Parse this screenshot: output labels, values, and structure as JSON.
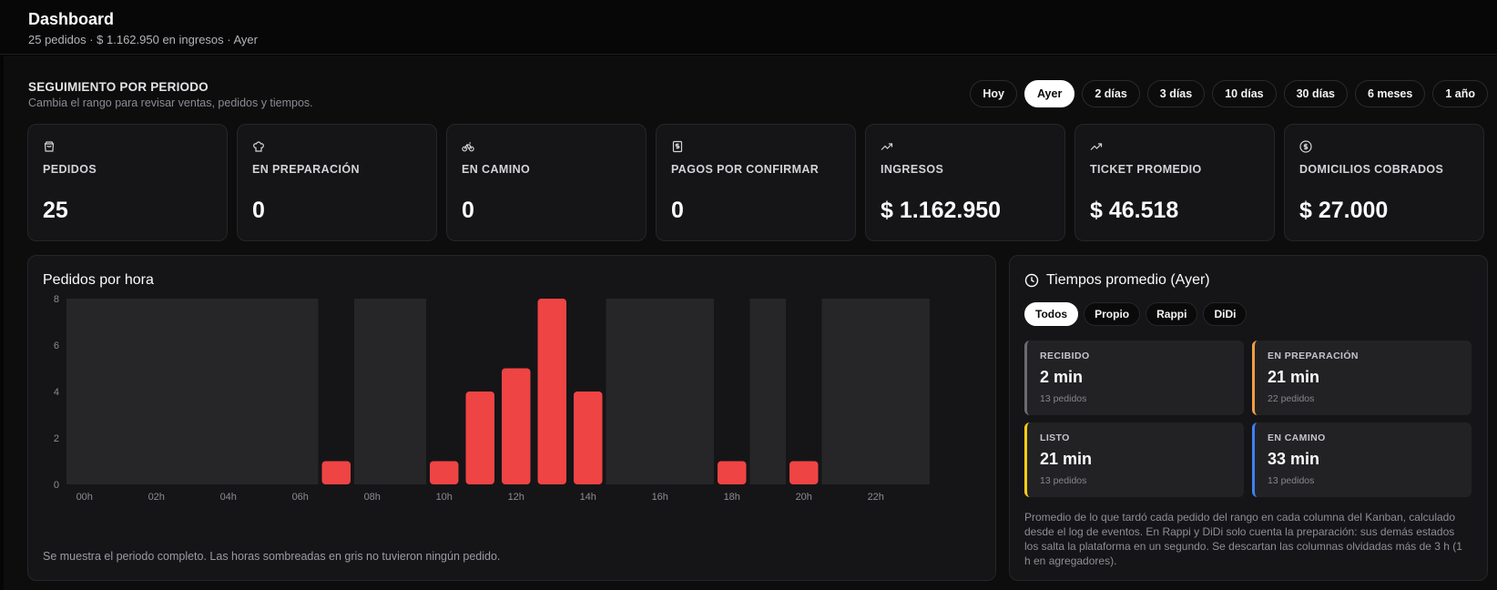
{
  "header": {
    "title": "Dashboard",
    "subtitle": "25 pedidos · $ 1.162.950 en ingresos · Ayer"
  },
  "period": {
    "title": "SEGUIMIENTO POR PERIODO",
    "subtitle": "Cambia el rango para revisar ventas, pedidos y tiempos.",
    "ranges": [
      "Hoy",
      "Ayer",
      "2 días",
      "3 días",
      "10 días",
      "30 días",
      "6 meses",
      "1 año"
    ],
    "active_range": "Ayer"
  },
  "stats": [
    {
      "icon": "shopping-bag-icon",
      "label": "PEDIDOS",
      "value": "25"
    },
    {
      "icon": "chef-hat-icon",
      "label": "EN PREPARACIÓN",
      "value": "0"
    },
    {
      "icon": "bike-icon",
      "label": "EN CAMINO",
      "value": "0"
    },
    {
      "icon": "receipt-icon",
      "label": "PAGOS POR CONFIRMAR",
      "value": "0"
    },
    {
      "icon": "trending-up-icon",
      "label": "INGRESOS",
      "value": "$ 1.162.950"
    },
    {
      "icon": "trending-up-icon",
      "label": "TICKET PROMEDIO",
      "value": "$ 46.518"
    },
    {
      "icon": "dollar-circle-icon",
      "label": "DOMICILIOS COBRADOS",
      "value": "$ 27.000"
    }
  ],
  "chart": {
    "title": "Pedidos por hora",
    "note": "Se muestra el periodo completo. Las horas sombreadas en gris no tuvieron ningún pedido."
  },
  "chart_data": {
    "type": "bar",
    "categories": [
      "00h",
      "01h",
      "02h",
      "03h",
      "04h",
      "05h",
      "06h",
      "07h",
      "08h",
      "09h",
      "10h",
      "11h",
      "12h",
      "13h",
      "14h",
      "15h",
      "16h",
      "17h",
      "18h",
      "19h",
      "20h",
      "21h",
      "22h",
      "23h"
    ],
    "x_tick_labels": [
      "00h",
      "02h",
      "04h",
      "06h",
      "08h",
      "10h",
      "12h",
      "14h",
      "16h",
      "18h",
      "20h",
      "22h"
    ],
    "values": [
      0,
      0,
      0,
      0,
      0,
      0,
      0,
      1,
      0,
      0,
      1,
      4,
      5,
      8,
      4,
      0,
      0,
      0,
      1,
      0,
      1,
      0,
      0,
      0
    ],
    "ylim": [
      0,
      8
    ],
    "yticks": [
      0,
      2,
      4,
      6,
      8
    ],
    "bar_color": "#ef4444",
    "empty_shade_color": "#262628",
    "grid": false,
    "legend": "none"
  },
  "times": {
    "title": "Tiempos promedio (Ayer)",
    "filters": [
      "Todos",
      "Propio",
      "Rappi",
      "DiDi"
    ],
    "active_filter": "Todos",
    "boxes": [
      {
        "label": "RECIBIDO",
        "value": "2 min",
        "count": "13 pedidos",
        "color": "#6b6b70"
      },
      {
        "label": "EN PREPARACIÓN",
        "value": "21 min",
        "count": "22 pedidos",
        "color": "#f59e42"
      },
      {
        "label": "LISTO",
        "value": "21 min",
        "count": "13 pedidos",
        "color": "#facc15"
      },
      {
        "label": "EN CAMINO",
        "value": "33 min",
        "count": "13 pedidos",
        "color": "#3b82f6"
      }
    ],
    "description": "Promedio de lo que tardó cada pedido del rango en cada columna del Kanban, calculado desde el log de eventos. En Rappi y DiDi solo cuenta la preparación: sus demás estados los salta la plataforma en un segundo. Se descartan las columnas olvidadas más de 3 h (1 h en agregadores)."
  }
}
